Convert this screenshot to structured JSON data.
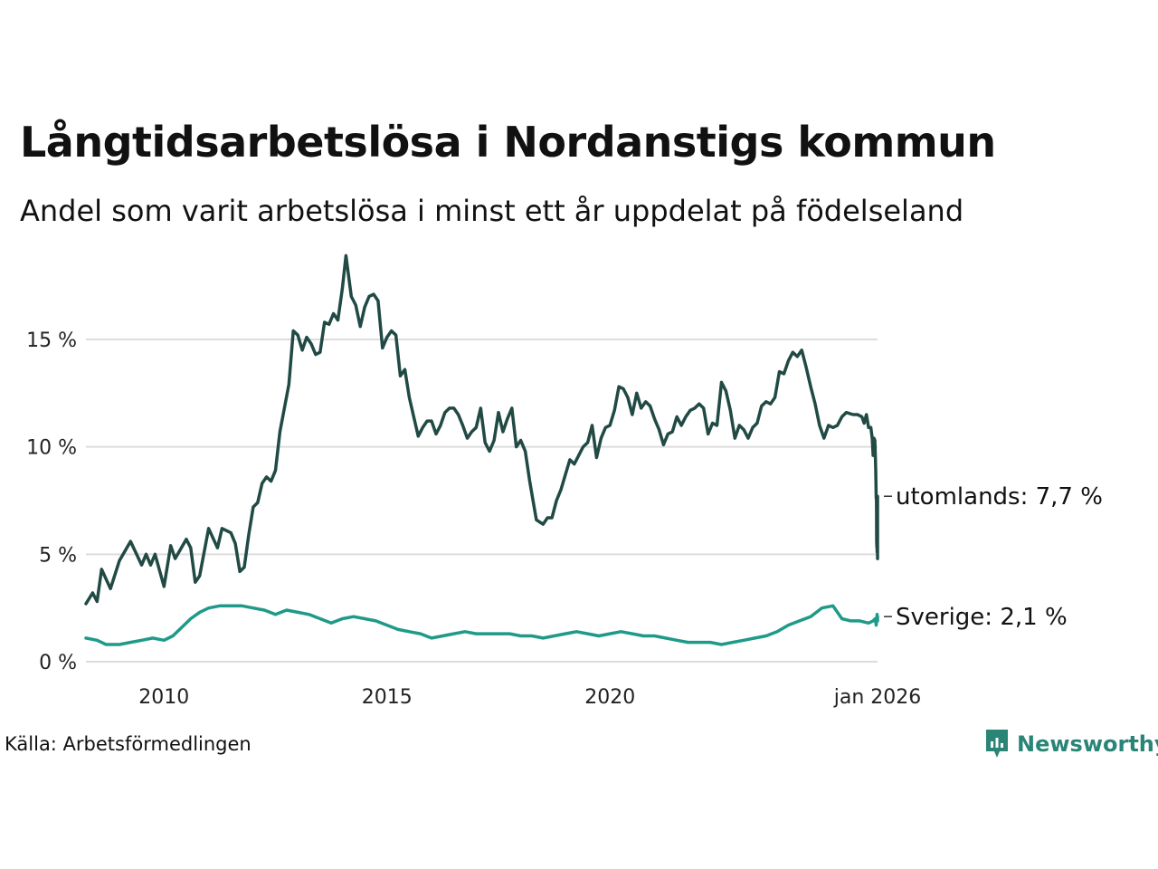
{
  "header": {
    "title": "Långtidsarbetslösa i Nordanstigs kommun",
    "subtitle": "Andel som varit arbetslösa i minst ett år uppdelat på födelseland"
  },
  "footer": {
    "source": "Källa: Arbetsförmedlingen",
    "brand": "Newsworthy"
  },
  "colors": {
    "utomlands": "#214a44",
    "sverige": "#1f9a88",
    "grid": "#dddddd",
    "brand": "#2a8577"
  },
  "chart_data": {
    "type": "line",
    "title": "Långtidsarbetslösa i Nordanstigs kommun",
    "subtitle": "Andel som varit arbetslösa i minst ett år uppdelat på födelseland",
    "xlabel": "",
    "ylabel": "",
    "xlim": [
      2008.25,
      2026.0
    ],
    "ylim": [
      0,
      19
    ],
    "y_ticks": [
      {
        "value": 0,
        "label": "0 %"
      },
      {
        "value": 5,
        "label": "5 %"
      },
      {
        "value": 10,
        "label": "10 %"
      },
      {
        "value": 15,
        "label": "15 %"
      }
    ],
    "x_ticks": [
      {
        "value": 2010.0,
        "label": "2010"
      },
      {
        "value": 2015.0,
        "label": "2015"
      },
      {
        "value": 2020.0,
        "label": "2020"
      },
      {
        "value": 2026.0,
        "label": "jan 2026"
      }
    ],
    "grid": true,
    "series": [
      {
        "name": "utomlands",
        "end_label": "utomlands: 7,7 %",
        "points": [
          [
            2008.25,
            2.7
          ],
          [
            2008.4,
            3.2
          ],
          [
            2008.5,
            2.8
          ],
          [
            2008.6,
            4.3
          ],
          [
            2008.8,
            3.4
          ],
          [
            2009.0,
            4.7
          ],
          [
            2009.25,
            5.6
          ],
          [
            2009.5,
            4.5
          ],
          [
            2009.6,
            5.0
          ],
          [
            2009.7,
            4.5
          ],
          [
            2009.8,
            5.0
          ],
          [
            2010.0,
            3.5
          ],
          [
            2010.15,
            5.4
          ],
          [
            2010.25,
            4.8
          ],
          [
            2010.5,
            5.7
          ],
          [
            2010.6,
            5.3
          ],
          [
            2010.7,
            3.7
          ],
          [
            2010.8,
            4.0
          ],
          [
            2011.0,
            6.2
          ],
          [
            2011.2,
            5.3
          ],
          [
            2011.3,
            6.2
          ],
          [
            2011.5,
            6.0
          ],
          [
            2011.6,
            5.5
          ],
          [
            2011.7,
            4.2
          ],
          [
            2011.8,
            4.4
          ],
          [
            2011.9,
            5.9
          ],
          [
            2012.0,
            7.2
          ],
          [
            2012.1,
            7.4
          ],
          [
            2012.2,
            8.3
          ],
          [
            2012.3,
            8.6
          ],
          [
            2012.4,
            8.4
          ],
          [
            2012.5,
            8.9
          ],
          [
            2012.6,
            10.7
          ],
          [
            2012.8,
            12.9
          ],
          [
            2012.9,
            15.4
          ],
          [
            2013.0,
            15.2
          ],
          [
            2013.1,
            14.5
          ],
          [
            2013.2,
            15.1
          ],
          [
            2013.3,
            14.8
          ],
          [
            2013.4,
            14.3
          ],
          [
            2013.5,
            14.4
          ],
          [
            2013.6,
            15.8
          ],
          [
            2013.7,
            15.7
          ],
          [
            2013.8,
            16.2
          ],
          [
            2013.9,
            15.9
          ],
          [
            2014.0,
            17.4
          ],
          [
            2014.08,
            18.9
          ],
          [
            2014.2,
            17.0
          ],
          [
            2014.3,
            16.6
          ],
          [
            2014.4,
            15.6
          ],
          [
            2014.5,
            16.5
          ],
          [
            2014.6,
            17.0
          ],
          [
            2014.7,
            17.1
          ],
          [
            2014.8,
            16.8
          ],
          [
            2014.9,
            14.6
          ],
          [
            2015.0,
            15.1
          ],
          [
            2015.1,
            15.4
          ],
          [
            2015.2,
            15.2
          ],
          [
            2015.3,
            13.3
          ],
          [
            2015.4,
            13.6
          ],
          [
            2015.5,
            12.3
          ],
          [
            2015.6,
            11.4
          ],
          [
            2015.7,
            10.5
          ],
          [
            2015.8,
            10.9
          ],
          [
            2015.9,
            11.2
          ],
          [
            2016.0,
            11.2
          ],
          [
            2016.1,
            10.6
          ],
          [
            2016.2,
            11.0
          ],
          [
            2016.3,
            11.6
          ],
          [
            2016.4,
            11.8
          ],
          [
            2016.5,
            11.8
          ],
          [
            2016.6,
            11.5
          ],
          [
            2016.7,
            11.0
          ],
          [
            2016.8,
            10.4
          ],
          [
            2016.9,
            10.7
          ],
          [
            2017.0,
            10.9
          ],
          [
            2017.1,
            11.8
          ],
          [
            2017.2,
            10.2
          ],
          [
            2017.3,
            9.8
          ],
          [
            2017.4,
            10.3
          ],
          [
            2017.5,
            11.6
          ],
          [
            2017.6,
            10.7
          ],
          [
            2017.7,
            11.3
          ],
          [
            2017.8,
            11.8
          ],
          [
            2017.9,
            10.0
          ],
          [
            2018.0,
            10.3
          ],
          [
            2018.1,
            9.8
          ],
          [
            2018.2,
            8.4
          ],
          [
            2018.3,
            7.2
          ],
          [
            2018.35,
            6.6
          ],
          [
            2018.5,
            6.4
          ],
          [
            2018.6,
            6.7
          ],
          [
            2018.7,
            6.7
          ],
          [
            2018.8,
            7.5
          ],
          [
            2018.9,
            8.0
          ],
          [
            2019.0,
            8.7
          ],
          [
            2019.1,
            9.4
          ],
          [
            2019.2,
            9.2
          ],
          [
            2019.3,
            9.6
          ],
          [
            2019.4,
            10.0
          ],
          [
            2019.5,
            10.2
          ],
          [
            2019.6,
            11.0
          ],
          [
            2019.7,
            9.5
          ],
          [
            2019.8,
            10.4
          ],
          [
            2019.9,
            10.9
          ],
          [
            2020.0,
            11.0
          ],
          [
            2020.1,
            11.7
          ],
          [
            2020.2,
            12.8
          ],
          [
            2020.3,
            12.7
          ],
          [
            2020.4,
            12.3
          ],
          [
            2020.5,
            11.5
          ],
          [
            2020.6,
            12.5
          ],
          [
            2020.7,
            11.8
          ],
          [
            2020.8,
            12.1
          ],
          [
            2020.9,
            11.9
          ],
          [
            2021.0,
            11.3
          ],
          [
            2021.1,
            10.8
          ],
          [
            2021.2,
            10.1
          ],
          [
            2021.3,
            10.6
          ],
          [
            2021.4,
            10.7
          ],
          [
            2021.5,
            11.4
          ],
          [
            2021.6,
            11.0
          ],
          [
            2021.7,
            11.4
          ],
          [
            2021.8,
            11.7
          ],
          [
            2021.9,
            11.8
          ],
          [
            2022.0,
            12.0
          ],
          [
            2022.1,
            11.8
          ],
          [
            2022.2,
            10.6
          ],
          [
            2022.3,
            11.1
          ],
          [
            2022.4,
            11.0
          ],
          [
            2022.5,
            13.0
          ],
          [
            2022.6,
            12.6
          ],
          [
            2022.7,
            11.7
          ],
          [
            2022.8,
            10.4
          ],
          [
            2022.9,
            11.0
          ],
          [
            2023.0,
            10.8
          ],
          [
            2023.1,
            10.4
          ],
          [
            2023.2,
            10.9
          ],
          [
            2023.3,
            11.1
          ],
          [
            2023.4,
            11.9
          ],
          [
            2023.5,
            12.1
          ],
          [
            2023.6,
            12.0
          ],
          [
            2023.7,
            12.3
          ],
          [
            2023.8,
            13.5
          ],
          [
            2023.9,
            13.4
          ],
          [
            2024.0,
            14.0
          ],
          [
            2024.1,
            14.4
          ],
          [
            2024.2,
            14.2
          ],
          [
            2024.3,
            14.5
          ],
          [
            2024.4,
            13.7
          ],
          [
            2024.5,
            12.8
          ],
          [
            2024.6,
            12.0
          ],
          [
            2024.7,
            11.0
          ],
          [
            2024.8,
            10.4
          ],
          [
            2024.9,
            11.0
          ],
          [
            2025.0,
            10.9
          ],
          [
            2025.1,
            11.0
          ],
          [
            2025.2,
            11.4
          ],
          [
            2025.3,
            11.6
          ],
          [
            2025.45,
            11.5
          ],
          [
            2025.55,
            11.5
          ],
          [
            2025.65,
            11.4
          ],
          [
            2025.7,
            11.1
          ],
          [
            2025.75,
            11.5
          ],
          [
            2025.8,
            10.9
          ],
          [
            2025.85,
            10.9
          ],
          [
            2025.88,
            10.4
          ],
          [
            2025.9,
            9.6
          ],
          [
            2025.92,
            10.4
          ],
          [
            2025.94,
            10.3
          ],
          [
            2025.95,
            9.7
          ],
          [
            2025.96,
            8.9
          ],
          [
            2025.97,
            7.6
          ],
          [
            2025.975,
            7.6
          ],
          [
            2025.978,
            7.0
          ],
          [
            2025.98,
            5.6
          ],
          [
            2025.982,
            5.5
          ],
          [
            2025.984,
            5.4
          ],
          [
            2025.986,
            5.3
          ],
          [
            2025.988,
            5.5
          ],
          [
            2025.99,
            5.1
          ],
          [
            2025.991,
            5.8
          ],
          [
            2025.992,
            6.9
          ],
          [
            2025.993,
            7.1
          ],
          [
            2025.994,
            6.7
          ],
          [
            2025.995,
            6.9
          ],
          [
            2025.996,
            7.1
          ],
          [
            2025.9965,
            7.5
          ],
          [
            2025.997,
            6.7
          ],
          [
            2025.9975,
            6.2
          ],
          [
            2025.998,
            6.1
          ],
          [
            2025.9985,
            5.5
          ],
          [
            2025.999,
            5.3
          ],
          [
            2025.9992,
            4.8
          ],
          [
            2025.9994,
            5.3
          ],
          [
            2025.9996,
            5.5
          ],
          [
            2025.9997,
            6.0
          ],
          [
            2025.9998,
            5.8
          ],
          [
            2025.9999,
            6.4
          ],
          [
            2026.0,
            7.7
          ]
        ]
      },
      {
        "name": "Sverige",
        "end_label": "Sverige: 2,1 %",
        "points": [
          [
            2008.25,
            1.1
          ],
          [
            2008.5,
            1.0
          ],
          [
            2008.7,
            0.8
          ],
          [
            2009.0,
            0.8
          ],
          [
            2009.25,
            0.9
          ],
          [
            2009.5,
            1.0
          ],
          [
            2009.75,
            1.1
          ],
          [
            2010.0,
            1.0
          ],
          [
            2010.2,
            1.2
          ],
          [
            2010.4,
            1.6
          ],
          [
            2010.6,
            2.0
          ],
          [
            2010.8,
            2.3
          ],
          [
            2011.0,
            2.5
          ],
          [
            2011.25,
            2.6
          ],
          [
            2011.5,
            2.6
          ],
          [
            2011.75,
            2.6
          ],
          [
            2012.0,
            2.5
          ],
          [
            2012.25,
            2.4
          ],
          [
            2012.5,
            2.2
          ],
          [
            2012.75,
            2.4
          ],
          [
            2013.0,
            2.3
          ],
          [
            2013.25,
            2.2
          ],
          [
            2013.5,
            2.0
          ],
          [
            2013.75,
            1.8
          ],
          [
            2014.0,
            2.0
          ],
          [
            2014.25,
            2.1
          ],
          [
            2014.5,
            2.0
          ],
          [
            2014.75,
            1.9
          ],
          [
            2015.0,
            1.7
          ],
          [
            2015.25,
            1.5
          ],
          [
            2015.5,
            1.4
          ],
          [
            2015.75,
            1.3
          ],
          [
            2016.0,
            1.1
          ],
          [
            2016.25,
            1.2
          ],
          [
            2016.5,
            1.3
          ],
          [
            2016.75,
            1.4
          ],
          [
            2017.0,
            1.3
          ],
          [
            2017.25,
            1.3
          ],
          [
            2017.5,
            1.3
          ],
          [
            2017.75,
            1.3
          ],
          [
            2018.0,
            1.2
          ],
          [
            2018.25,
            1.2
          ],
          [
            2018.5,
            1.1
          ],
          [
            2018.75,
            1.2
          ],
          [
            2019.0,
            1.3
          ],
          [
            2019.25,
            1.4
          ],
          [
            2019.5,
            1.3
          ],
          [
            2019.75,
            1.2
          ],
          [
            2020.0,
            1.3
          ],
          [
            2020.25,
            1.4
          ],
          [
            2020.5,
            1.3
          ],
          [
            2020.75,
            1.2
          ],
          [
            2021.0,
            1.2
          ],
          [
            2021.25,
            1.1
          ],
          [
            2021.5,
            1.0
          ],
          [
            2021.75,
            0.9
          ],
          [
            2022.0,
            0.9
          ],
          [
            2022.25,
            0.9
          ],
          [
            2022.5,
            0.8
          ],
          [
            2022.75,
            0.9
          ],
          [
            2023.0,
            1.0
          ],
          [
            2023.25,
            1.1
          ],
          [
            2023.5,
            1.2
          ],
          [
            2023.75,
            1.4
          ],
          [
            2024.0,
            1.7
          ],
          [
            2024.25,
            1.9
          ],
          [
            2024.5,
            2.1
          ],
          [
            2024.75,
            2.5
          ],
          [
            2025.0,
            2.6
          ],
          [
            2025.2,
            2.0
          ],
          [
            2025.4,
            1.9
          ],
          [
            2025.6,
            1.9
          ],
          [
            2025.8,
            1.8
          ],
          [
            2025.9,
            1.9
          ],
          [
            2025.95,
            2.0
          ],
          [
            2025.97,
            1.7
          ],
          [
            2025.98,
            1.9
          ],
          [
            2025.99,
            2.2
          ],
          [
            2025.995,
            1.9
          ],
          [
            2025.997,
            1.9
          ],
          [
            2025.998,
            2.0
          ],
          [
            2025.999,
            2.0
          ],
          [
            2025.9995,
            1.9
          ],
          [
            2026.0,
            2.1
          ]
        ]
      }
    ]
  }
}
